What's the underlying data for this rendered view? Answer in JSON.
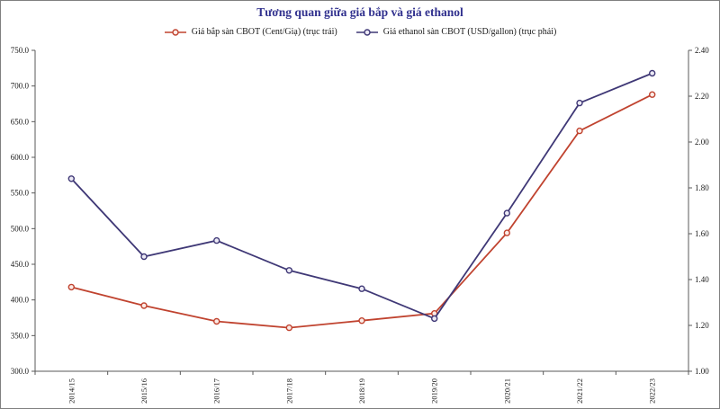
{
  "colors": {
    "title": "#31318E",
    "axis": "#595959",
    "tick_text": "#1a1a1a",
    "frame_border": "#808080",
    "background": "#FFFFFF",
    "corn_series": "#C0432F",
    "ethanol_series": "#3F3876"
  },
  "chart_data": {
    "type": "line",
    "title": "Tương quan giữa giá bắp và giá ethanol",
    "categories": [
      "2014/15",
      "2015/16",
      "2016/17",
      "2017/18",
      "2018/19",
      "2019/20",
      "2020/21",
      "2021/22",
      "2022/23"
    ],
    "series": [
      {
        "name": "Giá bắp sàn CBOT (Cent/Giạ) (trục trái)",
        "axis": "left",
        "color": "#C0432F",
        "marker_fill": "#FBEBE6",
        "values": [
          418,
          392,
          370,
          361,
          371,
          381,
          494,
          637,
          688
        ]
      },
      {
        "name": "Giá ethanol sàn CBOT (USD/gallon) (trục phải)",
        "axis": "right",
        "color": "#3F3876",
        "marker_fill": "#ECEAF5",
        "values": [
          1.84,
          1.5,
          1.57,
          1.44,
          1.36,
          1.23,
          1.69,
          2.17,
          2.3
        ]
      }
    ],
    "left_axis": {
      "min": 300,
      "max": 750,
      "major_unit": 50,
      "tick_labels": [
        "750.0",
        "700.0",
        "650.0",
        "600.0",
        "550.0",
        "500.0",
        "450.0",
        "400.0",
        "350.0",
        "300.0"
      ]
    },
    "right_axis": {
      "min": 1.0,
      "max": 2.4,
      "major_unit": 0.2,
      "tick_labels": [
        "2.40",
        "2.20",
        "2.00",
        "1.80",
        "1.60",
        "1.40",
        "1.20",
        "1.00"
      ]
    },
    "grid": false,
    "legend_position": "top-center",
    "x_tick_label_rotation": -90
  }
}
